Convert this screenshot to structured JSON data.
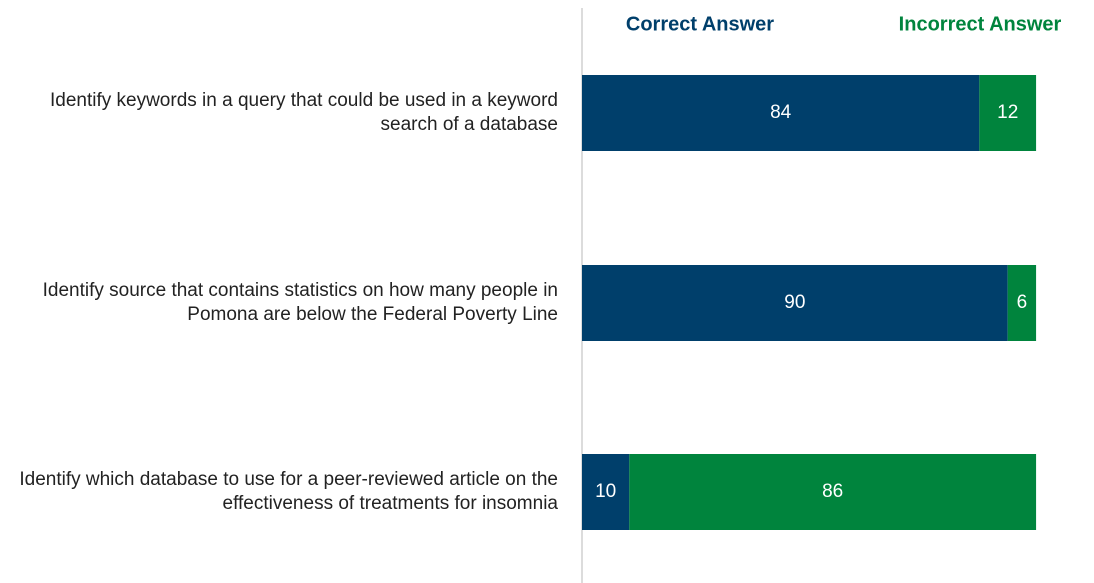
{
  "chart_data": {
    "type": "stacked-bar-horizontal",
    "categories": [
      "Identify keywords in a query that could be used in a keyword search of a database",
      "Identify source that contains statistics on how many people in Pomona are below the Federal Poverty Line",
      "Identify which database to use for a peer-reviewed article on the effectiveness of treatments for insomnia"
    ],
    "series": [
      {
        "name": "Correct Answer",
        "color": "#003f6b",
        "values": [
          84,
          90,
          10
        ]
      },
      {
        "name": "Incorrect Answer",
        "color": "#00843d",
        "values": [
          12,
          6,
          86
        ]
      }
    ],
    "xlim": [
      0,
      100
    ],
    "legend": "top"
  }
}
